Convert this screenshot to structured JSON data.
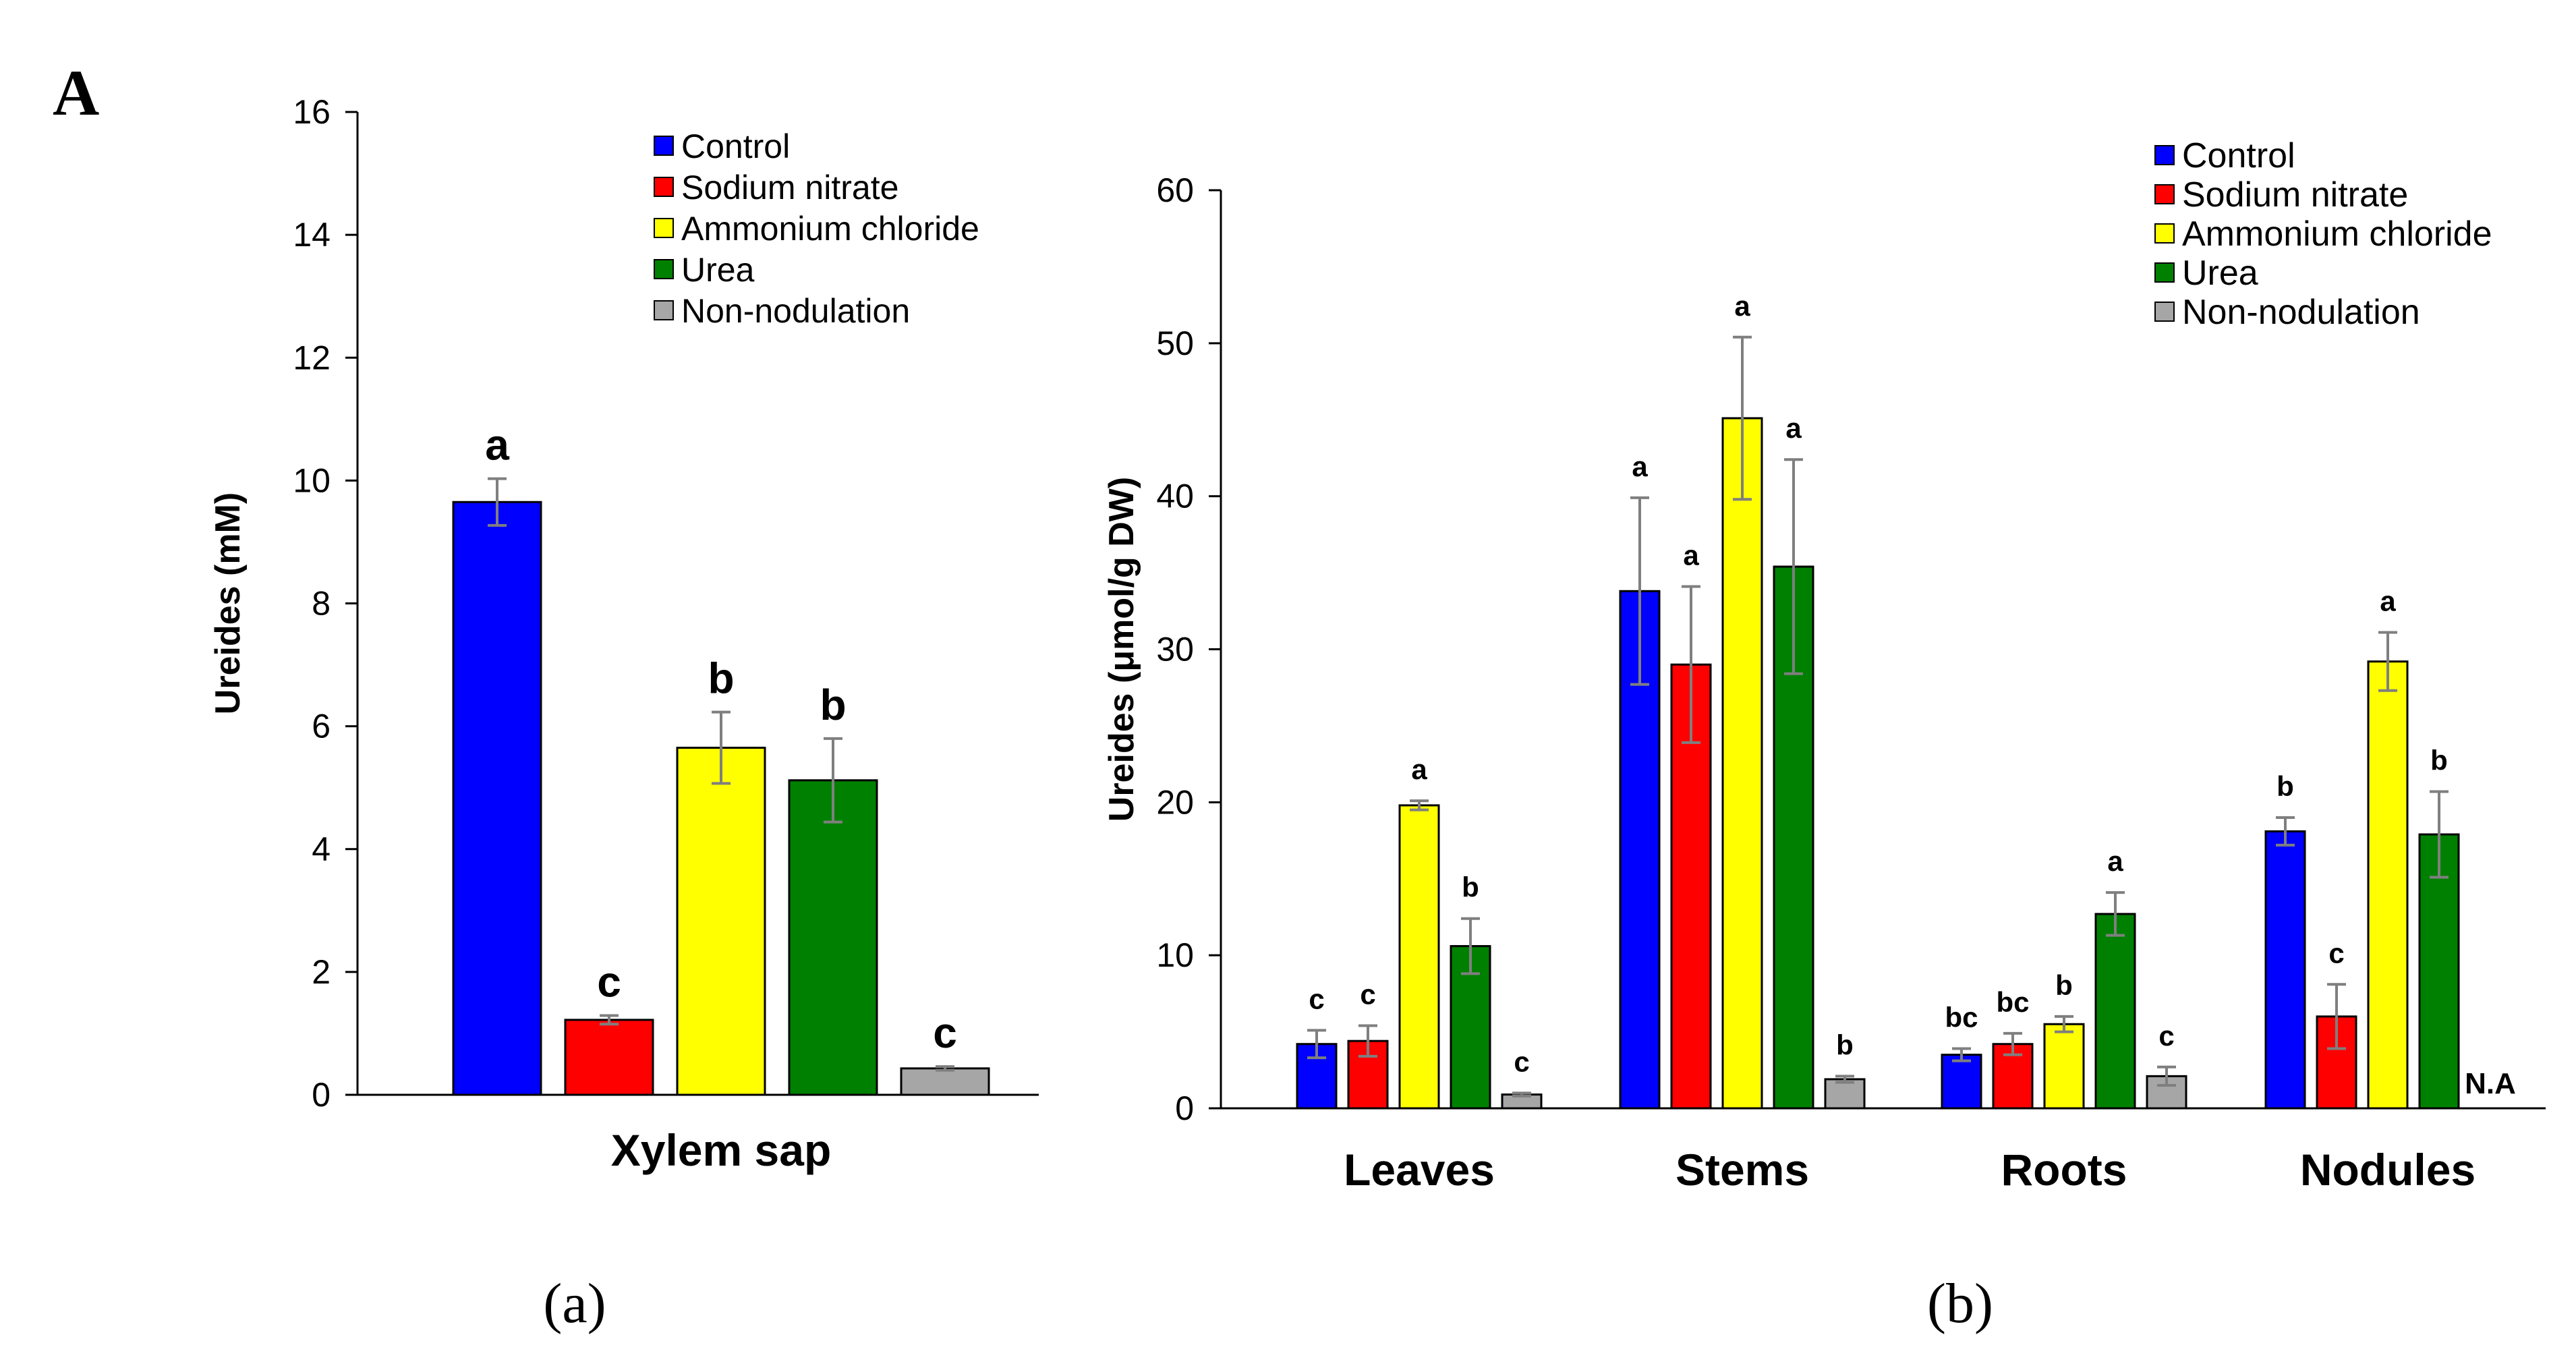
{
  "panel_letter": "A",
  "sub_labels": [
    "(a)",
    "(b)"
  ],
  "colors": {
    "Control": "#0000ff",
    "Sodium nitrate": "#ff0000",
    "Ammonium chloride": "#ffff00",
    "Urea": "#008000",
    "Non-nodulation": "#a6a6a6"
  },
  "chart_data": [
    {
      "type": "bar",
      "title": "",
      "xlabel": "Xylem sap",
      "ylabel": "Ureides (mM)",
      "ylim": [
        0,
        16
      ],
      "yticks": [
        0,
        2,
        4,
        6,
        8,
        10,
        12,
        14,
        16
      ],
      "categories": [
        "Xylem sap"
      ],
      "series": [
        {
          "name": "Control",
          "values": [
            9.65
          ],
          "errors": [
            0.38
          ],
          "letters": [
            "a"
          ]
        },
        {
          "name": "Sodium nitrate",
          "values": [
            1.22
          ],
          "errors": [
            0.07
          ],
          "letters": [
            "c"
          ]
        },
        {
          "name": "Ammonium chloride",
          "values": [
            5.65
          ],
          "errors": [
            0.58
          ],
          "letters": [
            "b"
          ]
        },
        {
          "name": "Urea",
          "values": [
            5.12
          ],
          "errors": [
            0.68
          ],
          "letters": [
            "b"
          ]
        },
        {
          "name": "Non-nodulation",
          "values": [
            0.43
          ],
          "errors": [
            0.03
          ],
          "letters": [
            "c"
          ]
        }
      ],
      "legend": [
        "Control",
        "Sodium nitrate",
        "Ammonium chloride",
        "Urea",
        "Non-nodulation"
      ],
      "legend_position": "top-right"
    },
    {
      "type": "bar",
      "title": "",
      "xlabel": "",
      "ylabel": "Ureides (μmol/g DW)",
      "ylim": [
        0,
        60
      ],
      "yticks": [
        0,
        10,
        20,
        30,
        40,
        50,
        60
      ],
      "categories": [
        "Leaves",
        "Stems",
        "Roots",
        "Nodules"
      ],
      "series": [
        {
          "name": "Control",
          "values": [
            4.2,
            33.8,
            3.5,
            18.1
          ],
          "errors": [
            0.9,
            6.1,
            0.4,
            0.9
          ],
          "letters": [
            "c",
            "a",
            "bc",
            "b"
          ]
        },
        {
          "name": "Sodium nitrate",
          "values": [
            4.4,
            29.0,
            4.2,
            6.0
          ],
          "errors": [
            1.0,
            5.1,
            0.7,
            2.1
          ],
          "letters": [
            "c",
            "a",
            "bc",
            "c"
          ]
        },
        {
          "name": "Ammonium chloride",
          "values": [
            19.8,
            45.1,
            5.5,
            29.2
          ],
          "errors": [
            0.3,
            5.3,
            0.5,
            1.9
          ],
          "letters": [
            "a",
            "a",
            "b",
            "a"
          ]
        },
        {
          "name": "Urea",
          "values": [
            10.6,
            35.4,
            12.7,
            17.9
          ],
          "errors": [
            1.8,
            7.0,
            1.4,
            2.8
          ],
          "letters": [
            "b",
            "a",
            "a",
            "b"
          ]
        },
        {
          "name": "Non-nodulation",
          "values": [
            0.9,
            1.9,
            2.1,
            null
          ],
          "errors": [
            0.1,
            0.2,
            0.6,
            null
          ],
          "letters": [
            "c",
            "b",
            "c",
            "N.A"
          ]
        }
      ],
      "legend": [
        "Control",
        "Sodium nitrate",
        "Ammonium chloride",
        "Urea",
        "Non-nodulation"
      ],
      "legend_position": "top-right"
    }
  ]
}
